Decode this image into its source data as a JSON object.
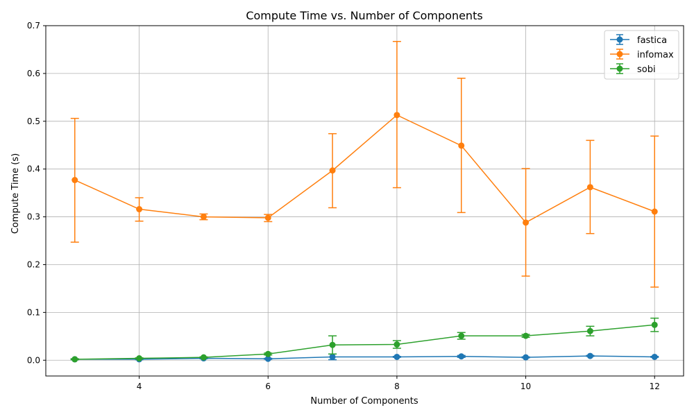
{
  "chart_data": {
    "type": "line",
    "title": "Compute Time vs. Number of Components",
    "xlabel": "Number of Components",
    "ylabel": "Compute Time (s)",
    "x": [
      3,
      4,
      5,
      6,
      7,
      8,
      9,
      10,
      11,
      12
    ],
    "xlim": [
      2.55,
      12.45
    ],
    "ylim": [
      -0.033,
      0.7
    ],
    "xticks": [
      4,
      6,
      8,
      10,
      12
    ],
    "yticks": [
      0.0,
      0.1,
      0.2,
      0.3,
      0.4,
      0.5,
      0.6,
      0.7
    ],
    "grid": true,
    "legend_position": "top-right",
    "series": [
      {
        "name": "fastica",
        "color": "#1f77b4",
        "values": [
          0.002,
          0.002,
          0.004,
          0.003,
          0.007,
          0.007,
          0.008,
          0.006,
          0.009,
          0.007
        ],
        "err_low": [
          0.001,
          0.001,
          0.001,
          0.001,
          0.006,
          0.001,
          0.002,
          0.001,
          0.001,
          0.001
        ],
        "err_high": [
          0.001,
          0.001,
          0.001,
          0.001,
          0.006,
          0.001,
          0.002,
          0.001,
          0.001,
          0.001
        ]
      },
      {
        "name": "infomax",
        "color": "#ff7f0e",
        "values": [
          0.377,
          0.316,
          0.3,
          0.298,
          0.397,
          0.513,
          0.449,
          0.288,
          0.362,
          0.311
        ],
        "err_low": [
          0.13,
          0.025,
          0.006,
          0.008,
          0.078,
          0.152,
          0.14,
          0.112,
          0.097,
          0.158
        ],
        "err_high": [
          0.129,
          0.024,
          0.006,
          0.007,
          0.077,
          0.154,
          0.141,
          0.113,
          0.098,
          0.158
        ]
      },
      {
        "name": "sobi",
        "color": "#2ca02c",
        "values": [
          0.002,
          0.004,
          0.006,
          0.013,
          0.032,
          0.033,
          0.051,
          0.051,
          0.061,
          0.074
        ],
        "err_low": [
          0.001,
          0.001,
          0.001,
          0.002,
          0.019,
          0.008,
          0.007,
          0.003,
          0.01,
          0.014
        ],
        "err_high": [
          0.001,
          0.001,
          0.001,
          0.002,
          0.019,
          0.008,
          0.007,
          0.003,
          0.01,
          0.014
        ]
      }
    ]
  }
}
